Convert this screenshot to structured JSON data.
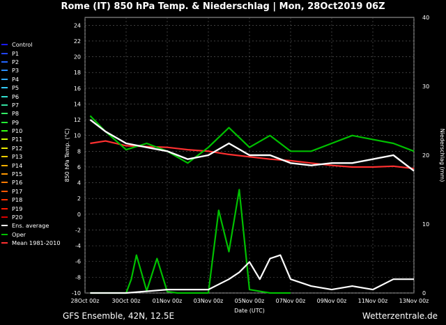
{
  "title": "Rome  (IT)  850 hPa Temp. & Niederschlag | Mon, 28Oct2019 06Z",
  "footer": {
    "left": "GFS Ensemble, 42N, 12.5E",
    "right": "Wetterzentrale.de"
  },
  "colors": {
    "control": "#1a1aff",
    "ens_average": "#ffffff",
    "oper": "#00c000",
    "mean": "#ff3030",
    "background": "#000000",
    "grid": "#666666"
  },
  "chart_data": {
    "type": "line",
    "xlabel": "Date (UTC)",
    "ylabel": "850 hPa Temp. (°C)",
    "y2label": "Niederschlag (mm)",
    "ylim": [
      -10,
      25
    ],
    "y2lim": [
      0,
      40
    ],
    "x_ticks": [
      "28Oct 00z",
      "30Oct 00z",
      "01Nov 00z",
      "03Nov 00z",
      "05Nov 00z",
      "07Nov 00z",
      "09Nov 00z",
      "11Nov 00z",
      "13Nov 00z"
    ],
    "y_ticks": [
      -10,
      -8,
      -6,
      -4,
      -2,
      0,
      2,
      4,
      6,
      8,
      10,
      12,
      14,
      16,
      18,
      20,
      22,
      24
    ],
    "y2_ticks": [
      0,
      10,
      20,
      30,
      40
    ],
    "grid": true,
    "legend_position": "left",
    "series": [
      {
        "name": "Control",
        "color": "#1a1aff"
      },
      {
        "name": "P1",
        "color": "#2244ff"
      },
      {
        "name": "P2",
        "color": "#2266ff"
      },
      {
        "name": "P3",
        "color": "#2a8cff"
      },
      {
        "name": "P4",
        "color": "#33aaff"
      },
      {
        "name": "P5",
        "color": "#33ccff"
      },
      {
        "name": "P6",
        "color": "#33e0d0"
      },
      {
        "name": "P7",
        "color": "#33e0a0"
      },
      {
        "name": "P8",
        "color": "#33ee66"
      },
      {
        "name": "P9",
        "color": "#22ee33"
      },
      {
        "name": "P10",
        "color": "#33ff11"
      },
      {
        "name": "P11",
        "color": "#ccff00"
      },
      {
        "name": "P12",
        "color": "#eeee00"
      },
      {
        "name": "P13",
        "color": "#ffd000"
      },
      {
        "name": "P14",
        "color": "#ffb000"
      },
      {
        "name": "P15",
        "color": "#ff9900"
      },
      {
        "name": "P16",
        "color": "#ff7a00"
      },
      {
        "name": "P17",
        "color": "#ff5500"
      },
      {
        "name": "P18",
        "color": "#ff3300"
      },
      {
        "name": "P19",
        "color": "#ff1a00"
      },
      {
        "name": "P20",
        "color": "#dd0000"
      },
      {
        "name": "Ens. average",
        "color": "#ffffff"
      },
      {
        "name": "Oper",
        "color": "#00c000"
      },
      {
        "name": "Mean 1981-2010",
        "color": "#ff3030"
      }
    ],
    "temp_average": {
      "x": [
        "28Oct 06z",
        "29Oct 00z",
        "30Oct 00z",
        "31Oct 00z",
        "01Nov 00z",
        "02Nov 00z",
        "03Nov 00z",
        "04Nov 00z",
        "05Nov 00z",
        "06Nov 00z",
        "07Nov 00z",
        "08Nov 00z",
        "09Nov 00z",
        "10Nov 00z",
        "11Nov 00z",
        "12Nov 00z",
        "13Nov 00z"
      ],
      "y": [
        12,
        10.5,
        9,
        8.5,
        8,
        7,
        7.5,
        9,
        7.5,
        7.5,
        6.5,
        6.2,
        6.5,
        6.5,
        7,
        7.5,
        5.5
      ]
    },
    "temp_oper": {
      "x": [
        "28Oct 06z",
        "29Oct 00z",
        "30Oct 00z",
        "31Oct 00z",
        "01Nov 00z",
        "02Nov 00z",
        "03Nov 00z",
        "04Nov 00z",
        "05Nov 00z",
        "06Nov 00z",
        "07Nov 00z",
        "08Nov 00z",
        "09Nov 00z",
        "10Nov 00z",
        "11Nov 00z",
        "12Nov 00z",
        "13Nov 00z"
      ],
      "y": [
        12.5,
        10.5,
        8.2,
        9,
        8,
        6.5,
        8.5,
        11,
        8.5,
        10,
        8,
        8,
        9,
        10,
        9.5,
        9,
        8
      ]
    },
    "temp_mean_1981_2010": {
      "x": [
        "28Oct 06z",
        "29Oct 00z",
        "30Oct 00z",
        "31Oct 00z",
        "01Nov 00z",
        "02Nov 00z",
        "03Nov 00z",
        "04Nov 00z",
        "05Nov 00z",
        "06Nov 00z",
        "07Nov 00z",
        "08Nov 00z",
        "09Nov 00z",
        "10Nov 00z",
        "11Nov 00z",
        "12Nov 00z",
        "13Nov 00z"
      ],
      "y": [
        9,
        9.3,
        8.7,
        8.6,
        8.5,
        8.2,
        8,
        7.6,
        7.3,
        7,
        6.8,
        6.5,
        6.2,
        6,
        6,
        6.1,
        5.8
      ]
    },
    "precip_average": {
      "x": [
        "28Oct 06z",
        "30Oct 00z",
        "01Nov 00z",
        "03Nov 00z",
        "04Nov 00z",
        "04Nov 12z",
        "05Nov 00z",
        "05Nov 12z",
        "06Nov 00z",
        "06Nov 12z",
        "07Nov 00z",
        "08Nov 00z",
        "09Nov 00z",
        "10Nov 00z",
        "11Nov 00z",
        "12Nov 00z",
        "13Nov 00z"
      ],
      "y": [
        0,
        0,
        0.5,
        0.5,
        2,
        3,
        4.5,
        2,
        5,
        5.5,
        2,
        1,
        0.5,
        1,
        0.5,
        2,
        2
      ]
    },
    "precip_oper": {
      "x": [
        "28Oct 06z",
        "30Oct 00z",
        "30Oct 06z",
        "30Oct 12z",
        "31Oct 00z",
        "31Oct 12z",
        "01Nov 00z",
        "01Nov 12z",
        "03Nov 00z",
        "03Nov 12z",
        "04Nov 00z",
        "04Nov 12z",
        "05Nov 00z",
        "06Nov 00z",
        "07Nov 00z"
      ],
      "y": [
        0,
        0,
        2,
        5.5,
        0.3,
        5,
        0.2,
        0,
        0,
        12,
        6,
        15,
        0.5,
        0,
        0
      ]
    }
  }
}
